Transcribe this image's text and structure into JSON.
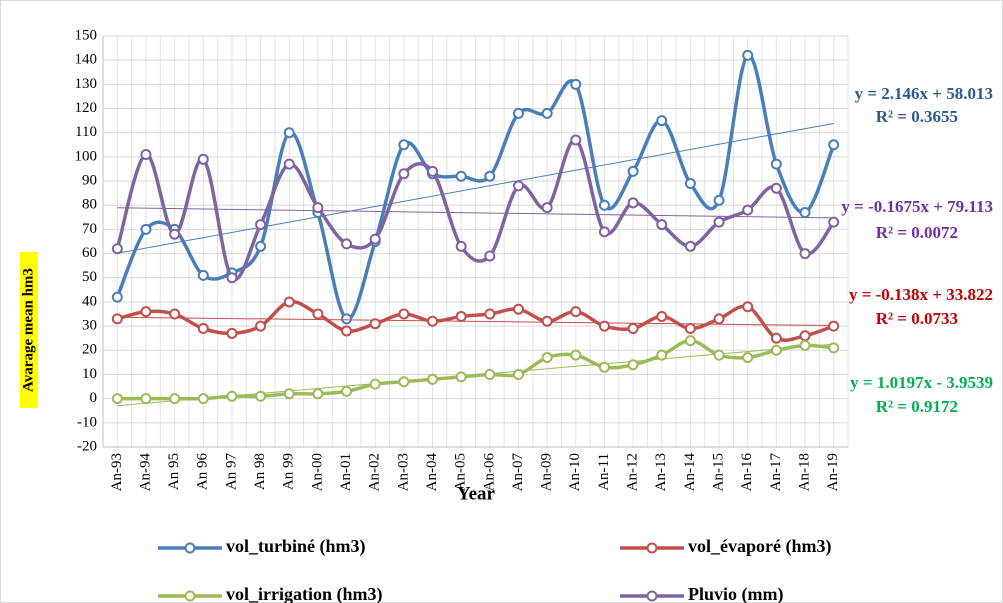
{
  "chart_data": {
    "type": "line",
    "smooth": true,
    "x_label": "Year",
    "y_label": "Avarage mean hm3",
    "categories": [
      "An-93",
      "An-94",
      "An 95",
      "An 96",
      "An 97",
      "An 98",
      "An 99",
      "An-00",
      "An-01",
      "An-02",
      "An-03",
      "An-04",
      "An-05",
      "An-06",
      "An-07",
      "An-09",
      "An-10",
      "An-11",
      "An-12",
      "An-13",
      "An-14",
      "An-15",
      "An-16",
      "An-17",
      "An-18",
      "An-19"
    ],
    "ylim": [
      -20,
      150
    ],
    "yticks": [
      -20,
      -10,
      0,
      10,
      20,
      30,
      40,
      50,
      60,
      70,
      80,
      90,
      100,
      110,
      120,
      130,
      140,
      150
    ],
    "grid": true,
    "series": [
      {
        "name": "vol_turbiné (hm3)",
        "color": "#4a7ebb",
        "values": [
          42,
          70,
          70,
          51,
          52,
          63,
          110,
          77,
          33,
          65,
          105,
          93,
          92,
          92,
          118,
          118,
          130,
          80,
          94,
          115,
          89,
          82,
          142,
          97,
          77,
          105
        ],
        "trendline": {
          "slope": 2.146,
          "intercept": 58.013,
          "equation": "y = 2.146x + 58.013",
          "r2": "R² = 0.3655",
          "label_color": "#2e5a8a"
        }
      },
      {
        "name": "vol_évaporé (hm3)",
        "color": "#c0504d",
        "values": [
          33,
          36,
          35,
          29,
          27,
          30,
          40,
          35,
          28,
          31,
          35,
          32,
          34,
          35,
          37,
          32,
          36,
          30,
          29,
          34,
          29,
          33,
          38,
          25,
          26,
          30
        ],
        "trendline": {
          "slope": -0.138,
          "intercept": 33.822,
          "equation": "y = -0.138x + 33.822",
          "r2": "R² = 0.0733",
          "label_color": "#c00000"
        }
      },
      {
        "name": "vol_irrigation (hm3)",
        "color": "#9bbb59",
        "values": [
          0,
          0,
          0,
          0,
          1,
          1,
          2,
          2,
          3,
          6,
          7,
          8,
          9,
          10,
          10,
          17,
          18,
          13,
          14,
          18,
          24,
          18,
          17,
          20,
          22,
          21
        ],
        "trendline": {
          "slope": 1.0197,
          "intercept": -3.9539,
          "equation": "y = 1.0197x - 3.9539",
          "r2": "R² = 0.9172",
          "label_color": "#00b050"
        }
      },
      {
        "name": "Pluvio (mm)",
        "color": "#8064a2",
        "values": [
          62,
          101,
          68,
          99,
          50,
          72,
          97,
          79,
          64,
          66,
          93,
          94,
          63,
          59,
          88,
          79,
          107,
          69,
          81,
          72,
          63,
          73,
          78,
          87,
          60,
          73
        ],
        "trendline": {
          "slope": -0.1675,
          "intercept": 79.113,
          "equation": "y = -0.1675x + 79.113",
          "r2": "R² = 0.0072",
          "label_color": "#7030a0"
        }
      }
    ]
  }
}
